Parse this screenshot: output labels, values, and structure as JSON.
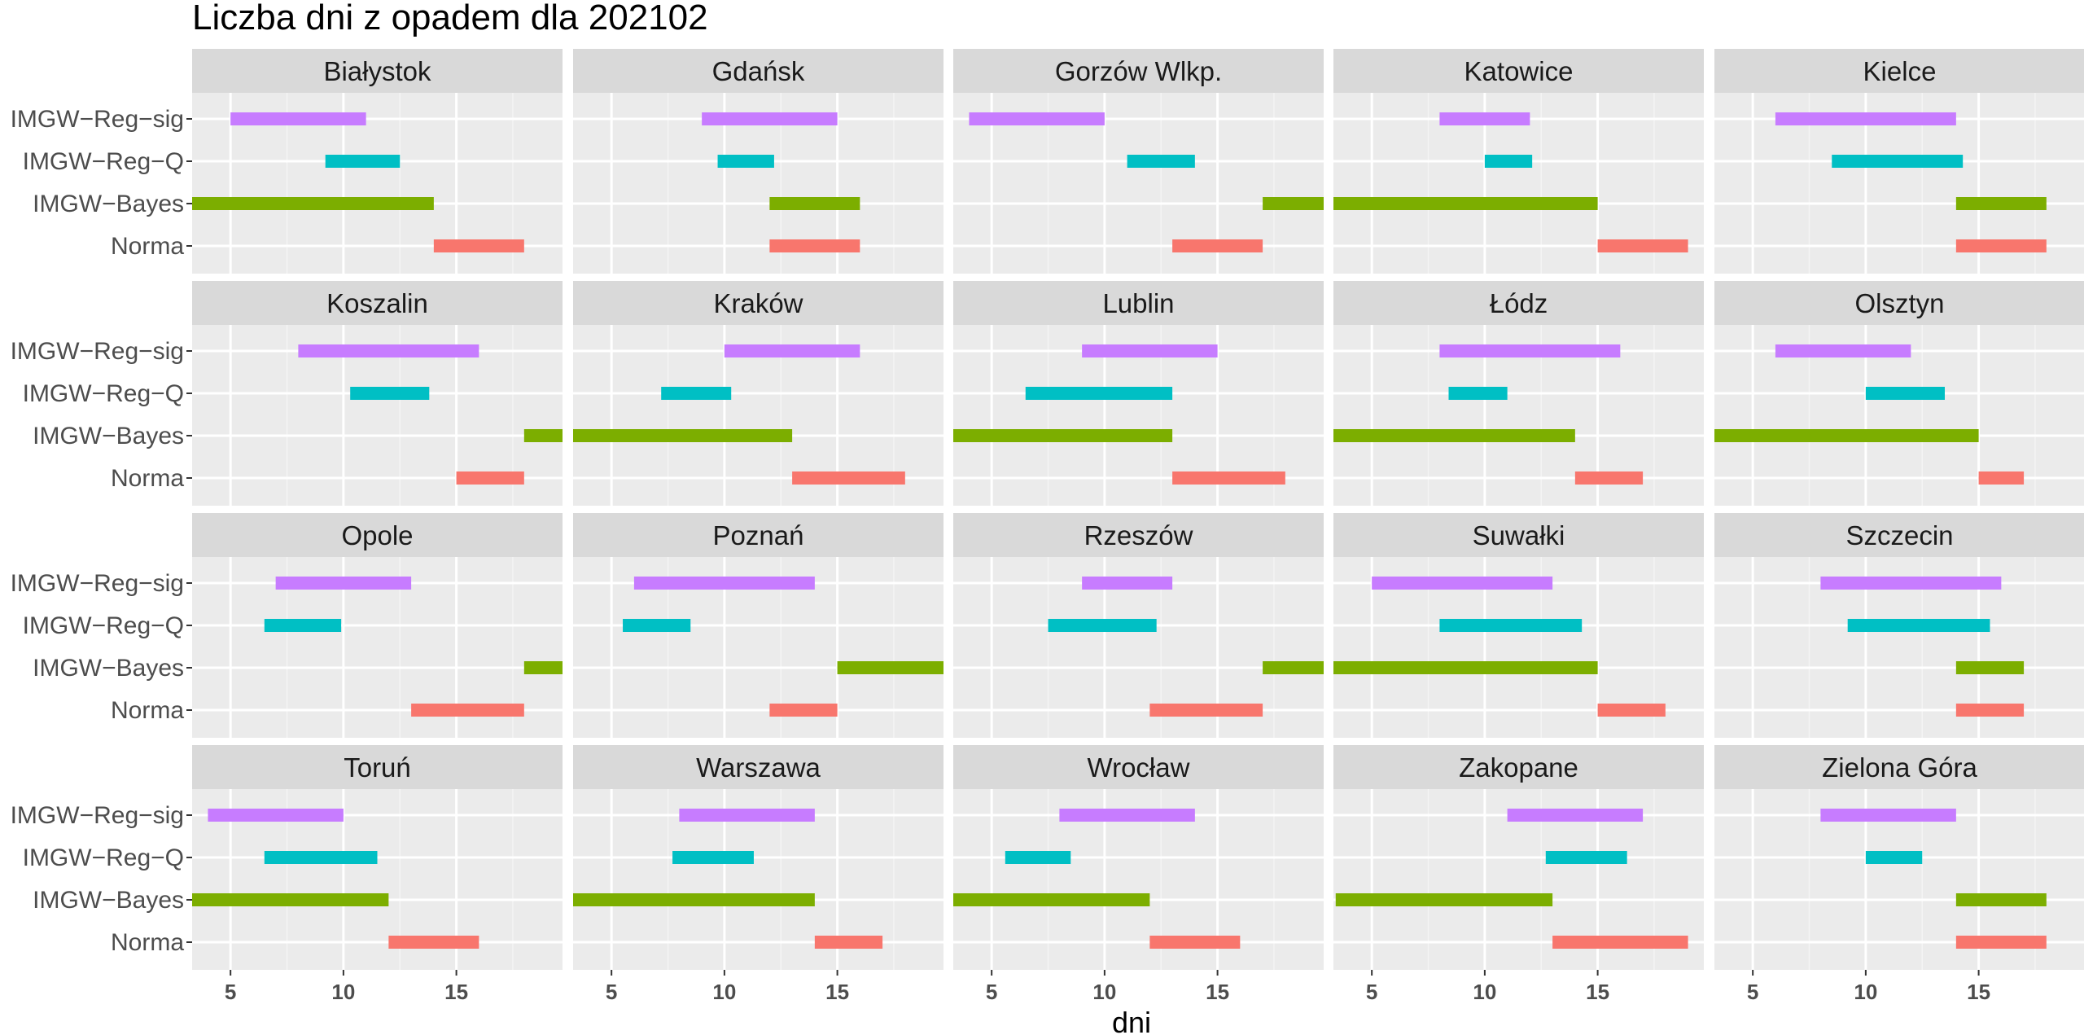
{
  "chart_data": {
    "type": "range_bar_facets",
    "title": "Liczba dni z opadem dla 202102",
    "xlabel": "dni",
    "xlim": [
      3.3,
      19.7
    ],
    "x_ticks": [
      5,
      10,
      15
    ],
    "grid": true,
    "legend": "none",
    "categories": [
      "IMGW−Reg−sig",
      "IMGW−Reg−Q",
      "IMGW−Bayes",
      "Norma"
    ],
    "colors": {
      "IMGW−Reg−sig": "#c77cff",
      "IMGW−Reg−Q": "#00bfc4",
      "IMGW−Bayes": "#7cae00",
      "Norma": "#f8766d"
    },
    "panels": [
      {
        "name": "Białystok",
        "ranges": [
          [
            5,
            11
          ],
          [
            9.2,
            12.5
          ],
          [
            3.3,
            14
          ],
          [
            14,
            18
          ]
        ]
      },
      {
        "name": "Gdańsk",
        "ranges": [
          [
            9,
            15
          ],
          [
            9.7,
            12.2
          ],
          [
            12,
            16
          ],
          [
            12,
            16
          ]
        ]
      },
      {
        "name": "Gorzów Wlkp.",
        "ranges": [
          [
            4,
            10
          ],
          [
            11,
            14
          ],
          [
            17,
            19.7
          ],
          [
            13,
            17
          ]
        ]
      },
      {
        "name": "Katowice",
        "ranges": [
          [
            8,
            12
          ],
          [
            10,
            12.1
          ],
          [
            3.3,
            15
          ],
          [
            15,
            19
          ]
        ]
      },
      {
        "name": "Kielce",
        "ranges": [
          [
            6,
            14
          ],
          [
            8.5,
            14.3
          ],
          [
            14,
            18
          ],
          [
            14,
            18
          ]
        ]
      },
      {
        "name": "Koszalin",
        "ranges": [
          [
            8,
            16
          ],
          [
            10.3,
            13.8
          ],
          [
            18,
            19.7
          ],
          [
            15,
            18
          ]
        ]
      },
      {
        "name": "Kraków",
        "ranges": [
          [
            10,
            16
          ],
          [
            7.2,
            10.3
          ],
          [
            3.3,
            13
          ],
          [
            13,
            18
          ]
        ]
      },
      {
        "name": "Lublin",
        "ranges": [
          [
            9,
            15
          ],
          [
            6.5,
            13
          ],
          [
            3.3,
            13
          ],
          [
            13,
            18
          ]
        ]
      },
      {
        "name": "Łódz",
        "ranges": [
          [
            8,
            16
          ],
          [
            8.4,
            11
          ],
          [
            3.3,
            14
          ],
          [
            14,
            17
          ]
        ]
      },
      {
        "name": "Olsztyn",
        "ranges": [
          [
            6,
            12
          ],
          [
            10,
            13.5
          ],
          [
            3.3,
            15
          ],
          [
            15,
            17
          ]
        ]
      },
      {
        "name": "Opole",
        "ranges": [
          [
            7,
            13
          ],
          [
            6.5,
            9.9
          ],
          [
            18,
            19.7
          ],
          [
            13,
            18
          ]
        ]
      },
      {
        "name": "Poznań",
        "ranges": [
          [
            6,
            14
          ],
          [
            5.5,
            8.5
          ],
          [
            15,
            19.7
          ],
          [
            12,
            15
          ]
        ]
      },
      {
        "name": "Rzeszów",
        "ranges": [
          [
            9,
            13
          ],
          [
            7.5,
            12.3
          ],
          [
            17,
            19.7
          ],
          [
            12,
            17
          ]
        ]
      },
      {
        "name": "Suwałki",
        "ranges": [
          [
            5,
            13
          ],
          [
            8,
            14.3
          ],
          [
            3.3,
            15
          ],
          [
            15,
            18
          ]
        ]
      },
      {
        "name": "Szczecin",
        "ranges": [
          [
            8,
            16
          ],
          [
            9.2,
            15.5
          ],
          [
            14,
            17
          ],
          [
            14,
            17
          ]
        ]
      },
      {
        "name": "Toruń",
        "ranges": [
          [
            4,
            10
          ],
          [
            6.5,
            11.5
          ],
          [
            3.3,
            12
          ],
          [
            12,
            16
          ]
        ]
      },
      {
        "name": "Warszawa",
        "ranges": [
          [
            8,
            14
          ],
          [
            7.7,
            11.3
          ],
          [
            3.3,
            14
          ],
          [
            14,
            17
          ]
        ]
      },
      {
        "name": "Wrocław",
        "ranges": [
          [
            8,
            14
          ],
          [
            5.6,
            8.5
          ],
          [
            3.3,
            12
          ],
          [
            12,
            16
          ]
        ]
      },
      {
        "name": "Zakopane",
        "ranges": [
          [
            11,
            17
          ],
          [
            12.7,
            16.3
          ],
          [
            3.4,
            13
          ],
          [
            13,
            19
          ]
        ]
      },
      {
        "name": "Zielona Góra",
        "ranges": [
          [
            8,
            14
          ],
          [
            10,
            12.5
          ],
          [
            14,
            18
          ],
          [
            14,
            18
          ]
        ]
      }
    ]
  }
}
